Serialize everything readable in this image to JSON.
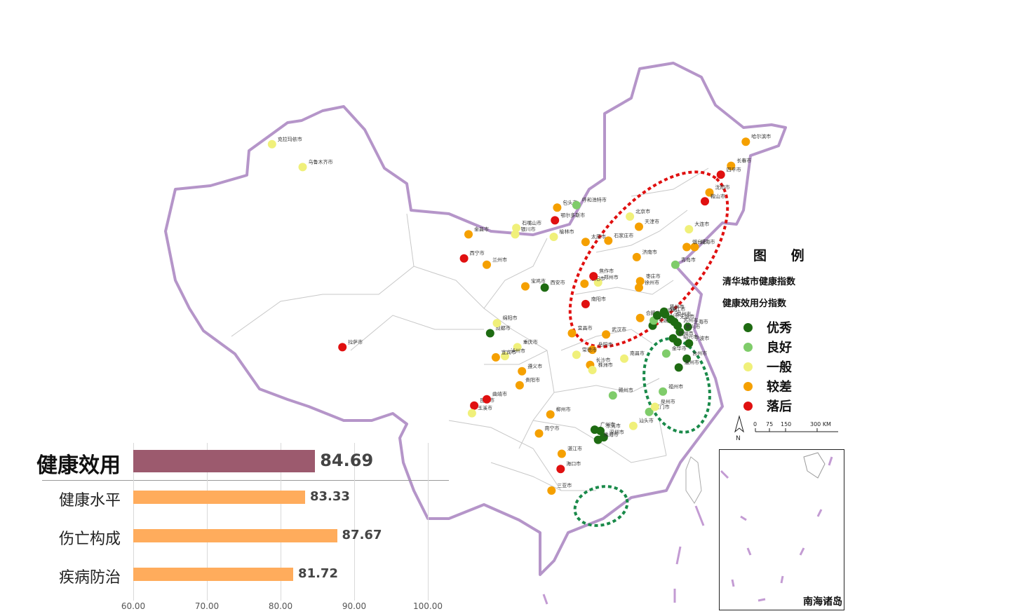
{
  "legend": {
    "title": "图 例",
    "subtitle1": "清华城市健康指数",
    "subtitle2": "健康效用分指数",
    "items": [
      {
        "label": "优秀",
        "color": "#1e6b12"
      },
      {
        "label": "良好",
        "color": "#7fcc6a"
      },
      {
        "label": "一般",
        "color": "#f0f07a"
      },
      {
        "label": "较差",
        "color": "#f5a000"
      },
      {
        "label": "落后",
        "color": "#e01010"
      }
    ]
  },
  "scale": {
    "labels": [
      "0",
      "75",
      "150",
      "300 KM"
    ],
    "north": "N"
  },
  "inset": {
    "label": "南海诸岛"
  },
  "bar_chart": {
    "categories": [
      "健康效用",
      "健康水平",
      "伤亡构成",
      "疾病防治"
    ],
    "values": [
      84.69,
      83.33,
      87.67,
      81.72
    ],
    "value_labels": [
      "84.69",
      "83.33",
      "87.67",
      "81.72"
    ],
    "colors": [
      "#9c5a6e",
      "#ffac5c",
      "#ffac5c",
      "#ffac5c"
    ],
    "xlim": [
      60,
      100
    ],
    "ticks": [
      "60.00",
      "70.00",
      "80.00",
      "90.00",
      "100.00"
    ]
  },
  "cities": [
    {
      "name": "克拉玛依市",
      "level": 2,
      "lng": 84.9,
      "lat": 45.6
    },
    {
      "name": "乌鲁木齐市",
      "level": 2,
      "lng": 87.6,
      "lat": 43.8
    },
    {
      "name": "拉萨市",
      "level": 4,
      "lng": 91.1,
      "lat": 29.6
    },
    {
      "name": "西宁市",
      "level": 4,
      "lng": 101.8,
      "lat": 36.6
    },
    {
      "name": "金昌市",
      "level": 3,
      "lng": 102.2,
      "lat": 38.5
    },
    {
      "name": "兰州市",
      "level": 3,
      "lng": 103.8,
      "lat": 36.1
    },
    {
      "name": "银川市",
      "level": 2,
      "lng": 106.3,
      "lat": 38.5
    },
    {
      "name": "石嘴山市",
      "level": 2,
      "lng": 106.4,
      "lat": 39.0
    },
    {
      "name": "包头市",
      "level": 3,
      "lng": 110.0,
      "lat": 40.6
    },
    {
      "name": "呼和浩特市",
      "level": 1,
      "lng": 111.7,
      "lat": 40.8
    },
    {
      "name": "鄂尔多斯市",
      "level": 4,
      "lng": 109.8,
      "lat": 39.6
    },
    {
      "name": "榆林市",
      "level": 2,
      "lng": 109.7,
      "lat": 38.3
    },
    {
      "name": "哈尔滨市",
      "level": 3,
      "lng": 126.6,
      "lat": 45.8
    },
    {
      "name": "长春市",
      "level": 3,
      "lng": 125.3,
      "lat": 43.9
    },
    {
      "name": "四平市",
      "level": 4,
      "lng": 124.4,
      "lat": 43.2
    },
    {
      "name": "沈阳市",
      "level": 3,
      "lng": 123.4,
      "lat": 41.8
    },
    {
      "name": "鞍山市",
      "level": 4,
      "lng": 123.0,
      "lat": 41.1
    },
    {
      "name": "北京市",
      "level": 2,
      "lng": 116.4,
      "lat": 39.9
    },
    {
      "name": "天津市",
      "level": 3,
      "lng": 117.2,
      "lat": 39.1
    },
    {
      "name": "大连市",
      "level": 2,
      "lng": 121.6,
      "lat": 38.9
    },
    {
      "name": "石家庄市",
      "level": 3,
      "lng": 114.5,
      "lat": 38.0
    },
    {
      "name": "太原市",
      "level": 3,
      "lng": 112.5,
      "lat": 37.9
    },
    {
      "name": "威海市",
      "level": 3,
      "lng": 122.1,
      "lat": 37.5
    },
    {
      "name": "烟台市",
      "level": 3,
      "lng": 121.4,
      "lat": 37.5
    },
    {
      "name": "济南市",
      "level": 3,
      "lng": 117.0,
      "lat": 36.7
    },
    {
      "name": "青岛市",
      "level": 1,
      "lng": 120.4,
      "lat": 36.1
    },
    {
      "name": "枣庄市",
      "level": 3,
      "lng": 117.3,
      "lat": 34.8
    },
    {
      "name": "徐州市",
      "level": 3,
      "lng": 117.2,
      "lat": 34.3
    },
    {
      "name": "郑州市",
      "level": 2,
      "lng": 113.6,
      "lat": 34.7
    },
    {
      "name": "洛阳市",
      "level": 3,
      "lng": 112.4,
      "lat": 34.6
    },
    {
      "name": "焦作市",
      "level": 4,
      "lng": 113.2,
      "lat": 35.2
    },
    {
      "name": "南阳市",
      "level": 4,
      "lng": 112.5,
      "lat": 33.0
    },
    {
      "name": "宝鸡市",
      "level": 3,
      "lng": 107.2,
      "lat": 34.4
    },
    {
      "name": "西安市",
      "level": 0,
      "lng": 108.9,
      "lat": 34.3
    },
    {
      "name": "成都市",
      "level": 0,
      "lng": 104.1,
      "lat": 30.7
    },
    {
      "name": "绵阳市",
      "level": 2,
      "lng": 104.7,
      "lat": 31.5
    },
    {
      "name": "重庆市",
      "level": 2,
      "lng": 106.5,
      "lat": 29.6
    },
    {
      "name": "泸州市",
      "level": 2,
      "lng": 105.4,
      "lat": 28.9
    },
    {
      "name": "宜宾市",
      "level": 3,
      "lng": 104.6,
      "lat": 28.8
    },
    {
      "name": "遵义市",
      "level": 3,
      "lng": 106.9,
      "lat": 27.7
    },
    {
      "name": "贵阳市",
      "level": 3,
      "lng": 106.7,
      "lat": 26.6
    },
    {
      "name": "昆明市",
      "level": 4,
      "lng": 102.7,
      "lat": 25.0
    },
    {
      "name": "曲靖市",
      "level": 4,
      "lng": 103.8,
      "lat": 25.5
    },
    {
      "name": "玉溪市",
      "level": 2,
      "lng": 102.5,
      "lat": 24.4
    },
    {
      "name": "南宁市",
      "level": 3,
      "lng": 108.4,
      "lat": 22.8
    },
    {
      "name": "柳州市",
      "level": 3,
      "lng": 109.4,
      "lat": 24.3
    },
    {
      "name": "宜昌市",
      "level": 3,
      "lng": 111.3,
      "lat": 30.7
    },
    {
      "name": "武汉市",
      "level": 3,
      "lng": 114.3,
      "lat": 30.6
    },
    {
      "name": "岳阳市",
      "level": 3,
      "lng": 113.1,
      "lat": 29.4
    },
    {
      "name": "长沙市",
      "level": 3,
      "lng": 112.9,
      "lat": 28.2
    },
    {
      "name": "株洲市",
      "level": 2,
      "lng": 113.1,
      "lat": 27.8
    },
    {
      "name": "常德市",
      "level": 2,
      "lng": 111.7,
      "lat": 29.0
    },
    {
      "name": "南昌市",
      "level": 2,
      "lng": 115.9,
      "lat": 28.7
    },
    {
      "name": "赣州市",
      "level": 1,
      "lng": 114.9,
      "lat": 25.8
    },
    {
      "name": "合肥市",
      "level": 3,
      "lng": 117.3,
      "lat": 31.9
    },
    {
      "name": "芜湖市",
      "level": 0,
      "lng": 118.4,
      "lat": 31.3
    },
    {
      "name": "马鞍山市",
      "level": 1,
      "lng": 118.5,
      "lat": 31.7
    },
    {
      "name": "南京市",
      "level": 0,
      "lng": 118.8,
      "lat": 32.1
    },
    {
      "name": "扬州市",
      "level": 0,
      "lng": 119.4,
      "lat": 32.4
    },
    {
      "name": "镇江市",
      "level": 0,
      "lng": 119.5,
      "lat": 32.2
    },
    {
      "name": "常州市",
      "level": 0,
      "lng": 120.0,
      "lat": 31.8
    },
    {
      "name": "无锡市",
      "level": 0,
      "lng": 120.3,
      "lat": 31.6
    },
    {
      "name": "苏州市",
      "level": 0,
      "lng": 120.6,
      "lat": 31.3
    },
    {
      "name": "上海市",
      "level": 0,
      "lng": 121.5,
      "lat": 31.2
    },
    {
      "name": "嘉兴市",
      "level": 0,
      "lng": 120.8,
      "lat": 30.8
    },
    {
      "name": "杭州市",
      "level": 0,
      "lng": 120.2,
      "lat": 30.3
    },
    {
      "name": "绍兴市",
      "level": 0,
      "lng": 120.6,
      "lat": 30.0
    },
    {
      "name": "宁波市",
      "level": 0,
      "lng": 121.6,
      "lat": 29.9
    },
    {
      "name": "金华市",
      "level": 1,
      "lng": 119.6,
      "lat": 29.1
    },
    {
      "name": "台州市",
      "level": 0,
      "lng": 121.4,
      "lat": 28.7
    },
    {
      "name": "温州市",
      "level": 0,
      "lng": 120.7,
      "lat": 28.0
    },
    {
      "name": "福州市",
      "level": 1,
      "lng": 119.3,
      "lat": 26.1
    },
    {
      "name": "厦门市",
      "level": 1,
      "lng": 118.1,
      "lat": 24.5
    },
    {
      "name": "泉州市",
      "level": 2,
      "lng": 118.6,
      "lat": 24.9
    },
    {
      "name": "汕头市",
      "level": 2,
      "lng": 116.7,
      "lat": 23.4
    },
    {
      "name": "广州市",
      "level": 0,
      "lng": 113.3,
      "lat": 23.1
    },
    {
      "name": "东莞市",
      "level": 0,
      "lng": 113.8,
      "lat": 23.0
    },
    {
      "name": "深圳市",
      "level": 0,
      "lng": 114.1,
      "lat": 22.5
    },
    {
      "name": "珠海市",
      "level": 0,
      "lng": 113.6,
      "lat": 22.3
    },
    {
      "name": "湛江市",
      "level": 3,
      "lng": 110.4,
      "lat": 21.2
    },
    {
      "name": "海口市",
      "level": 4,
      "lng": 110.3,
      "lat": 20.0
    },
    {
      "name": "三亚市",
      "level": 3,
      "lng": 109.5,
      "lat": 18.3
    }
  ]
}
